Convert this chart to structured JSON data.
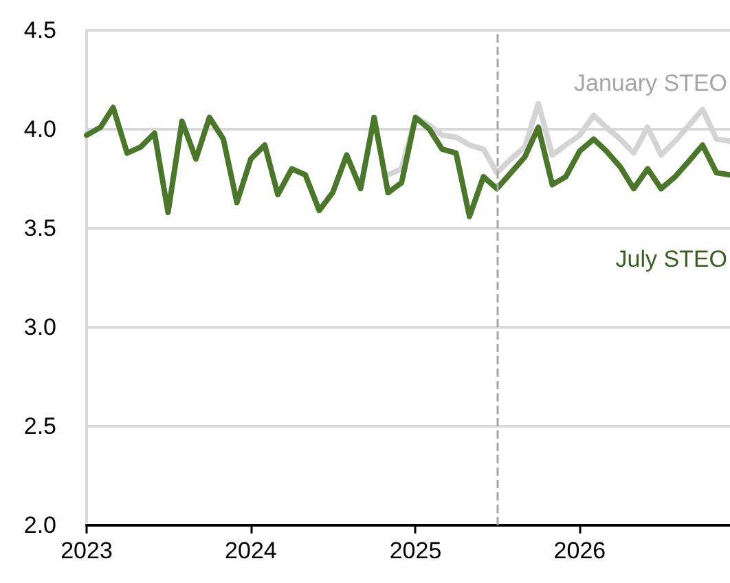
{
  "chart_data": {
    "type": "line",
    "x": [
      "2023-01",
      "2023-02",
      "2023-03",
      "2023-04",
      "2023-05",
      "2023-06",
      "2023-07",
      "2023-08",
      "2023-09",
      "2023-10",
      "2023-11",
      "2023-12",
      "2024-01",
      "2024-02",
      "2024-03",
      "2024-04",
      "2024-05",
      "2024-06",
      "2024-07",
      "2024-08",
      "2024-09",
      "2024-10",
      "2024-11",
      "2024-12",
      "2025-01",
      "2025-02",
      "2025-03",
      "2025-04",
      "2025-05",
      "2025-06",
      "2025-07",
      "2025-08",
      "2025-09",
      "2025-10",
      "2025-11",
      "2025-12",
      "2026-01",
      "2026-02",
      "2026-03",
      "2026-04",
      "2026-05",
      "2026-06",
      "2026-07",
      "2026-08",
      "2026-09",
      "2026-10",
      "2026-11",
      "2026-12"
    ],
    "series": [
      {
        "name": "January STEO",
        "color": "#d4d4d4",
        "values": [
          null,
          null,
          null,
          null,
          null,
          null,
          null,
          null,
          null,
          null,
          null,
          null,
          null,
          null,
          null,
          null,
          null,
          null,
          null,
          null,
          null,
          null,
          3.77,
          3.8,
          4.06,
          4.02,
          3.97,
          3.96,
          3.92,
          3.9,
          3.78,
          3.85,
          3.91,
          4.13,
          3.87,
          3.92,
          3.97,
          4.07,
          4.01,
          3.95,
          3.88,
          4.01,
          3.87,
          3.94,
          4.02,
          4.1,
          3.95,
          3.94
        ]
      },
      {
        "name": "July STEO",
        "color": "#4a7729",
        "values": [
          3.97,
          4.01,
          4.11,
          3.88,
          3.91,
          3.98,
          3.58,
          4.04,
          3.85,
          4.06,
          3.95,
          3.63,
          3.85,
          3.92,
          3.67,
          3.8,
          3.77,
          3.59,
          3.68,
          3.87,
          3.7,
          4.06,
          3.68,
          3.73,
          4.06,
          4.0,
          3.9,
          3.88,
          3.56,
          3.76,
          3.7,
          3.78,
          3.86,
          4.01,
          3.72,
          3.76,
          3.89,
          3.95,
          3.89,
          3.81,
          3.7,
          3.8,
          3.7,
          3.76,
          3.84,
          3.92,
          3.78,
          3.77
        ]
      }
    ],
    "xlim": [
      "2023-01",
      "2026-12"
    ],
    "xticks": [
      {
        "value": "2023-01",
        "label": "2023"
      },
      {
        "value": "2024-01",
        "label": "2024"
      },
      {
        "value": "2025-01",
        "label": "2025"
      },
      {
        "value": "2026-01",
        "label": "2026"
      }
    ],
    "ylim": [
      2.0,
      4.5
    ],
    "yticks": [
      {
        "value": 2,
        "label": "2.0"
      },
      {
        "value": 2.5,
        "label": "2.5"
      },
      {
        "value": 3,
        "label": "3.0"
      },
      {
        "value": 3.5,
        "label": "3.5"
      },
      {
        "value": 4,
        "label": "4.0"
      },
      {
        "value": 4.5,
        "label": "4.5"
      }
    ],
    "ref_lines": [
      {
        "axis": "x",
        "value": "2025-07",
        "color": "#a6a6a6",
        "line_style": "dashed"
      }
    ],
    "grid": "y",
    "legend": false,
    "marker": "none",
    "line_style": "solid"
  }
}
